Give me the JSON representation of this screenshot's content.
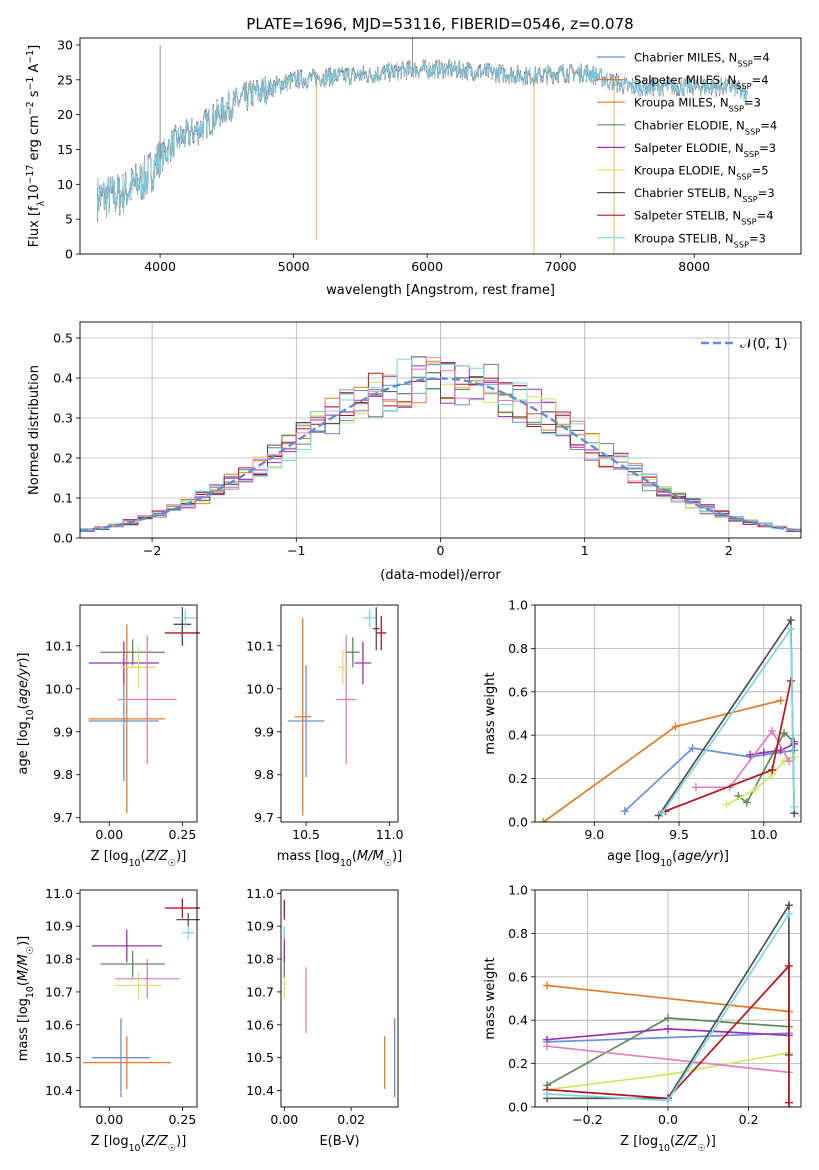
{
  "figure_title": "PLATE=1696, MJD=53116, FIBERID=0546, z=0.078",
  "colors": {
    "Chabrier MILES": "#6a8fd6",
    "Salpeter MILES": "#e07b2a",
    "Kroupa MILES": "#e07b2a",
    "Chabrier ELODIE": "#5c8a5c",
    "Salpeter ELODIE": "#9b32b5",
    "Kroupa ELODIE": "#cfe86a",
    "Chabrier STELIB": "#505050",
    "Salpeter STELIB": "#b3141d",
    "Kroupa STELIB": "#7fd7e3",
    "pink": "#e080b8",
    "gauss": "#5b8fd6"
  },
  "chart_data": [
    {
      "id": "spectrum",
      "type": "line",
      "title": "PLATE=1696, MJD=53116, FIBERID=0546, z=0.078",
      "xlabel": "wavelength [Angstrom, rest frame]",
      "ylabel": "Flux [f_λ10^-17 erg cm^-2 s^-1 A^-1]",
      "xlim": [
        3400,
        8800
      ],
      "ylim": [
        0,
        31
      ],
      "xticks": [
        "4000",
        "5000",
        "6000",
        "7000",
        "8000"
      ],
      "yticks": [
        "0",
        "5",
        "10",
        "15",
        "20",
        "25",
        "30"
      ],
      "legend_position": "right",
      "legend": [
        {
          "label": "Chabrier MILES",
          "n": "4"
        },
        {
          "label": "Salpeter MILES",
          "n": "4"
        },
        {
          "label": "Kroupa MILES",
          "n": "3"
        },
        {
          "label": "Chabrier ELODIE",
          "n": "4"
        },
        {
          "label": "Salpeter ELODIE",
          "n": "3"
        },
        {
          "label": "Kroupa ELODIE",
          "n": "5"
        },
        {
          "label": "Chabrier STELIB",
          "n": "3"
        },
        {
          "label": "Salpeter STELIB",
          "n": "4"
        },
        {
          "label": "Kroupa STELIB",
          "n": "3"
        }
      ],
      "continuum": [
        [
          3530,
          8
        ],
        [
          3700,
          8.5
        ],
        [
          3900,
          11
        ],
        [
          3950,
          12.5
        ],
        [
          4100,
          16
        ],
        [
          4300,
          18
        ],
        [
          4500,
          21
        ],
        [
          4700,
          23
        ],
        [
          5000,
          25
        ],
        [
          5300,
          25.5
        ],
        [
          5600,
          25.8
        ],
        [
          5900,
          26.5
        ],
        [
          6200,
          26.5
        ],
        [
          6500,
          26
        ],
        [
          6800,
          25.5
        ],
        [
          7000,
          26
        ],
        [
          7200,
          26
        ],
        [
          7350,
          25
        ],
        [
          7500,
          24
        ],
        [
          7800,
          24
        ],
        [
          8000,
          24
        ],
        [
          8300,
          24
        ],
        [
          8400,
          22.5
        ]
      ],
      "spikes": [
        [
          4000,
          30
        ],
        [
          5170,
          2
        ],
        [
          5890,
          31
        ],
        [
          6800,
          0
        ],
        [
          7400,
          0
        ]
      ]
    },
    {
      "id": "residuals",
      "type": "bar",
      "xlabel": "(data-model)/error",
      "ylabel": "Normed distribution",
      "xlim": [
        -2.5,
        2.5
      ],
      "ylim": [
        0,
        0.54
      ],
      "xticks": [
        "−2",
        "−1",
        "0",
        "1",
        "2"
      ],
      "yticks": [
        "0.0",
        "0.1",
        "0.2",
        "0.3",
        "0.4",
        "0.5"
      ],
      "grid": true,
      "legend": "𝒩(0, 1)",
      "legend_position": "top-right",
      "bin_width": 0.1
    },
    {
      "id": "age-vs-Z",
      "type": "scatter",
      "xlabel": "Z [log10(Z/Z☉)]",
      "ylabel": "age  [log10(age/yr)]",
      "xlim": [
        -0.1,
        0.3
      ],
      "ylim": [
        9.69,
        10.195
      ],
      "xticks": [
        "0.00",
        "0.25"
      ],
      "yticks": [
        "9.7",
        "9.8",
        "9.9",
        "10.0",
        "10.1"
      ],
      "points": [
        {
          "series": "Chabrier MILES",
          "x": 0.05,
          "xerr": 0.12,
          "y": 9.925,
          "yerr": 0.14
        },
        {
          "series": "Salpeter MILES",
          "x": 0.06,
          "xerr": 0.13,
          "y": 9.93,
          "yerr": 0.22
        },
        {
          "series": "Chabrier ELODIE",
          "x": 0.08,
          "xerr": 0.11,
          "y": 10.085,
          "yerr": 0.03
        },
        {
          "series": "Salpeter ELODIE",
          "x": 0.05,
          "xerr": 0.12,
          "y": 10.06,
          "yerr": 0.05
        },
        {
          "series": "Kroupa ELODIE",
          "x": 0.1,
          "xerr": 0.06,
          "y": 10.05,
          "yerr": 0.05
        },
        {
          "series": "pink",
          "x": 0.13,
          "xerr": 0.1,
          "y": 9.975,
          "yerr": 0.15
        },
        {
          "series": "Salpeter STELIB",
          "x": 0.25,
          "xerr": 0.06,
          "y": 10.13,
          "yerr": 0.03
        },
        {
          "series": "Chabrier STELIB",
          "x": 0.25,
          "xerr": 0.03,
          "y": 10.15,
          "yerr": 0.04
        },
        {
          "series": "Kroupa STELIB",
          "x": 0.26,
          "xerr": 0.04,
          "y": 10.165,
          "yerr": 0.02
        }
      ]
    },
    {
      "id": "age-vs-mass",
      "type": "scatter",
      "xlabel": "mass [log10(M/M☉)]",
      "ylabel": "",
      "xlim": [
        10.35,
        11.05
      ],
      "ylim": [
        9.69,
        10.195
      ],
      "xticks": [
        "10.5",
        "11.0"
      ],
      "yticks": [
        "9.7",
        "9.8",
        "9.9",
        "10.0",
        "10.1"
      ],
      "points": [
        {
          "series": "Chabrier MILES",
          "x": 10.5,
          "xerr": 0.11,
          "y": 9.925,
          "yerr": 0.13
        },
        {
          "series": "Salpeter MILES",
          "x": 10.48,
          "xerr": 0.05,
          "y": 9.935,
          "yerr": 0.23
        },
        {
          "series": "pink",
          "x": 10.74,
          "xerr": 0.06,
          "y": 9.975,
          "yerr": 0.15
        },
        {
          "series": "Kroupa ELODIE",
          "x": 10.72,
          "xerr": 0.03,
          "y": 10.05,
          "yerr": 0.04
        },
        {
          "series": "Chabrier ELODIE",
          "x": 10.78,
          "xerr": 0.04,
          "y": 10.085,
          "yerr": 0.035
        },
        {
          "series": "Salpeter ELODIE",
          "x": 10.84,
          "xerr": 0.05,
          "y": 10.06,
          "yerr": 0.05
        },
        {
          "series": "Kroupa STELIB",
          "x": 10.88,
          "xerr": 0.04,
          "y": 10.165,
          "yerr": 0.02
        },
        {
          "series": "Chabrier STELIB",
          "x": 10.92,
          "xerr": 0.02,
          "y": 10.14,
          "yerr": 0.05
        },
        {
          "series": "Salpeter STELIB",
          "x": 10.95,
          "xerr": 0.03,
          "y": 10.13,
          "yerr": 0.04
        }
      ]
    },
    {
      "id": "weight-vs-age",
      "type": "line",
      "xlabel": "age  [log10(age/yr)]",
      "ylabel": "mass weight",
      "xlim": [
        8.65,
        10.22
      ],
      "ylim": [
        0,
        1
      ],
      "xticks": [
        "9.0",
        "9.5",
        "10.0"
      ],
      "yticks": [
        "0.0",
        "0.2",
        "0.4",
        "0.6",
        "0.8",
        "1.0"
      ],
      "grid": true,
      "series": [
        {
          "name": "Chabrier MILES",
          "points": [
            [
              9.18,
              0.05
            ],
            [
              9.58,
              0.34
            ],
            [
              9.92,
              0.3
            ],
            [
              10.18,
              0.33
            ]
          ]
        },
        {
          "name": "Salpeter MILES",
          "points": [
            [
              8.7,
              0.0
            ],
            [
              9.48,
              0.44
            ],
            [
              10.1,
              0.56
            ]
          ]
        },
        {
          "name": "Chabrier ELODIE",
          "points": [
            [
              9.85,
              0.12
            ],
            [
              9.9,
              0.09
            ],
            [
              10.12,
              0.41
            ],
            [
              10.18,
              0.37
            ]
          ]
        },
        {
          "name": "Salpeter ELODIE",
          "points": [
            [
              9.92,
              0.31
            ],
            [
              10.0,
              0.32
            ],
            [
              10.1,
              0.33
            ],
            [
              10.18,
              0.36
            ]
          ]
        },
        {
          "name": "Kroupa ELODIE",
          "points": [
            [
              9.78,
              0.08
            ],
            [
              9.95,
              0.15
            ],
            [
              10.05,
              0.22
            ],
            [
              10.12,
              0.28
            ],
            [
              10.18,
              0.3
            ]
          ]
        },
        {
          "name": "pink",
          "points": [
            [
              9.6,
              0.16
            ],
            [
              9.8,
              0.16
            ],
            [
              10.05,
              0.42
            ],
            [
              10.15,
              0.28
            ]
          ]
        },
        {
          "name": "Chabrier STELIB",
          "points": [
            [
              9.38,
              0.03
            ],
            [
              10.16,
              0.93
            ],
            [
              10.18,
              0.04
            ]
          ]
        },
        {
          "name": "Salpeter STELIB",
          "points": [
            [
              9.42,
              0.05
            ],
            [
              10.05,
              0.24
            ],
            [
              10.16,
              0.65
            ]
          ]
        },
        {
          "name": "Kroupa STELIB",
          "points": [
            [
              9.4,
              0.04
            ],
            [
              10.16,
              0.89
            ],
            [
              10.18,
              0.07
            ]
          ]
        }
      ]
    },
    {
      "id": "mass-vs-Z",
      "type": "scatter",
      "xlabel": "Z [log10(Z/Z☉)]",
      "ylabel": "mass [log10(M/M☉)]",
      "xlim": [
        -0.1,
        0.3
      ],
      "ylim": [
        10.35,
        11.01
      ],
      "xticks": [
        "0.00",
        "0.25"
      ],
      "yticks": [
        "10.4",
        "10.5",
        "10.6",
        "10.7",
        "10.8",
        "10.9",
        "11.0"
      ],
      "points": [
        {
          "series": "Chabrier MILES",
          "x": 0.04,
          "xerr": 0.1,
          "y": 10.5,
          "yerr": 0.12
        },
        {
          "series": "Salpeter MILES",
          "x": 0.06,
          "xerr": 0.15,
          "y": 10.485,
          "yerr": 0.08
        },
        {
          "series": "pink",
          "x": 0.13,
          "xerr": 0.11,
          "y": 10.74,
          "yerr": 0.06
        },
        {
          "series": "Kroupa ELODIE",
          "x": 0.1,
          "xerr": 0.08,
          "y": 10.72,
          "yerr": 0.04
        },
        {
          "series": "Chabrier ELODIE",
          "x": 0.08,
          "xerr": 0.11,
          "y": 10.785,
          "yerr": 0.04
        },
        {
          "series": "Salpeter ELODIE",
          "x": 0.06,
          "xerr": 0.12,
          "y": 10.84,
          "yerr": 0.05
        },
        {
          "series": "Salpeter STELIB",
          "x": 0.25,
          "xerr": 0.06,
          "y": 10.955,
          "yerr": 0.03
        },
        {
          "series": "Chabrier STELIB",
          "x": 0.27,
          "xerr": 0.04,
          "y": 10.92,
          "yerr": 0.02
        },
        {
          "series": "Kroupa STELIB",
          "x": 0.27,
          "xerr": 0.02,
          "y": 10.88,
          "yerr": 0.02
        }
      ]
    },
    {
      "id": "mass-vs-EBV",
      "type": "scatter",
      "xlabel": "E(B-V)",
      "ylabel": "",
      "xlim": [
        -0.001,
        0.034
      ],
      "ylim": [
        10.35,
        11.01
      ],
      "xticks": [
        "0.00",
        "0.02"
      ],
      "yticks": [
        "10.4",
        "10.5",
        "10.6",
        "10.7",
        "10.8",
        "10.9",
        "11.0"
      ],
      "points": [
        {
          "series": "Chabrier MILES",
          "x": 0.033,
          "y": 10.5,
          "yerr": 0.12
        },
        {
          "series": "Salpeter MILES",
          "x": 0.03,
          "y": 10.485,
          "yerr": 0.08
        },
        {
          "series": "pink",
          "x": 0.0065,
          "y": 10.675,
          "yerr": 0.1
        },
        {
          "series": "Kroupa ELODIE",
          "x": 0.0,
          "y": 10.72,
          "yerr": 0.04
        },
        {
          "series": "Chabrier ELODIE",
          "x": 0.0,
          "y": 10.785,
          "yerr": 0.04
        },
        {
          "series": "Salpeter ELODIE",
          "x": 0.0,
          "y": 10.84,
          "yerr": 0.05
        },
        {
          "series": "Salpeter STELIB",
          "x": 0.0,
          "y": 10.95,
          "yerr": 0.03
        },
        {
          "series": "Kroupa STELIB",
          "x": 0.0,
          "y": 10.88,
          "yerr": 0.02
        }
      ]
    },
    {
      "id": "weight-vs-Z",
      "type": "line",
      "xlabel": "Z [log10(Z/Z☉)]",
      "ylabel": "mass weight",
      "xlim": [
        -0.33,
        0.33
      ],
      "ylim": [
        0,
        1
      ],
      "xticks": [
        "−0.2",
        "0.0",
        "0.2"
      ],
      "yticks": [
        "0.0",
        "0.2",
        "0.4",
        "0.6",
        "0.8",
        "1.0"
      ],
      "grid": true,
      "series": [
        {
          "name": "Chabrier MILES",
          "points": [
            [
              -0.3,
              0.3
            ],
            [
              0.3,
              0.34
            ]
          ]
        },
        {
          "name": "Salpeter MILES",
          "points": [
            [
              -0.3,
              0.56
            ],
            [
              0.3,
              0.44
            ],
            [
              0.3,
              0.0
            ]
          ]
        },
        {
          "name": "Chabrier ELODIE",
          "points": [
            [
              -0.3,
              0.1
            ],
            [
              0.0,
              0.41
            ],
            [
              0.3,
              0.37
            ]
          ]
        },
        {
          "name": "Salpeter ELODIE",
          "points": [
            [
              -0.3,
              0.31
            ],
            [
              0.0,
              0.36
            ],
            [
              0.3,
              0.33
            ]
          ]
        },
        {
          "name": "Kroupa ELODIE",
          "points": [
            [
              -0.3,
              0.08
            ],
            [
              0.0,
              0.15
            ],
            [
              0.3,
              0.25
            ]
          ]
        },
        {
          "name": "pink",
          "points": [
            [
              -0.3,
              0.28
            ],
            [
              0.3,
              0.16
            ]
          ]
        },
        {
          "name": "Chabrier STELIB",
          "points": [
            [
              -0.3,
              0.04
            ],
            [
              0.0,
              0.04
            ],
            [
              0.3,
              0.93
            ],
            [
              0.3,
              0.24
            ]
          ]
        },
        {
          "name": "Salpeter STELIB",
          "points": [
            [
              -0.3,
              0.08
            ],
            [
              0.0,
              0.04
            ],
            [
              0.3,
              0.65
            ],
            [
              0.3,
              0.02
            ]
          ]
        },
        {
          "name": "Kroupa STELIB",
          "points": [
            [
              -0.3,
              0.06
            ],
            [
              0.0,
              0.03
            ],
            [
              0.3,
              0.89
            ]
          ]
        }
      ]
    }
  ]
}
